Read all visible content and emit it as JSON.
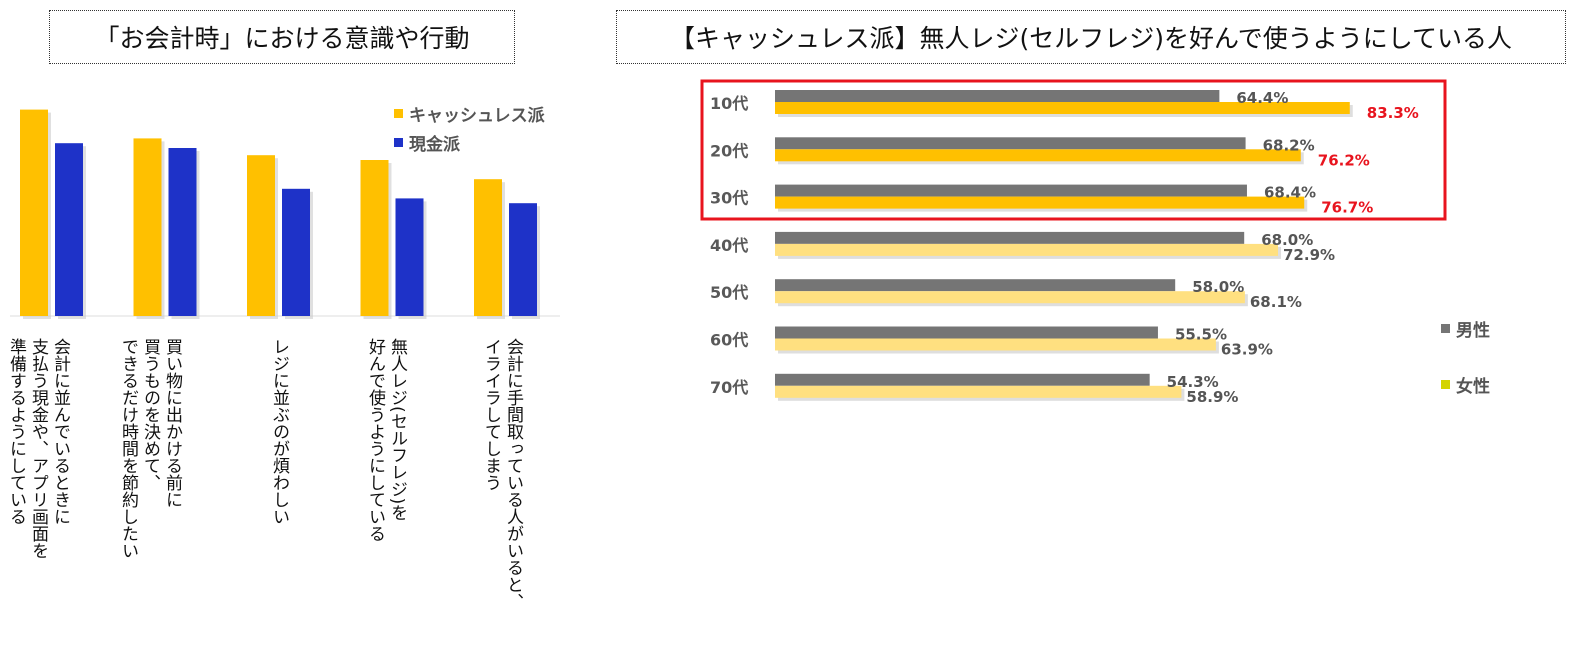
{
  "left_chart": {
    "title": "「お会計時」における意識や行動",
    "chart_data": {
      "type": "bar",
      "categories": [
        "会計に並んでいるときに\n支払う現金や、アプリ画面を\n準備するようにしている",
        "買い物に出かける前に\n買うものを決めて、\nできるだけ時間を節約したい",
        "レジに並ぶのが煩わしい",
        "無人レジ(セルフレジ)を\n好んで使うようにしている",
        "会計に手間取っている人がいると、\nイライラしてしまう"
      ],
      "series": [
        {
          "name": "キャッシュレス派",
          "values": [
            0.86,
            0.74,
            0.67,
            0.65,
            0.57
          ],
          "color": "#FFC000"
        },
        {
          "name": "現金派",
          "values": [
            0.72,
            0.7,
            0.53,
            0.49,
            0.47
          ],
          "color": "#1E32C8"
        }
      ],
      "legend_position": "top-right",
      "ylim": [
        0,
        1
      ]
    }
  },
  "right_chart": {
    "title": "【キャッシュレス派】無人レジ(セルフレジ)を好んで使うようにしている人",
    "chart_data": {
      "type": "bar",
      "orientation": "horizontal",
      "categories": [
        "10代",
        "20代",
        "30代",
        "40代",
        "50代",
        "60代",
        "70代"
      ],
      "series": [
        {
          "name": "男性",
          "values": [
            64.4,
            68.2,
            68.4,
            68.0,
            58.0,
            55.5,
            54.3
          ],
          "color": "#757575"
        },
        {
          "name": "女性",
          "values": [
            83.3,
            76.2,
            76.7,
            72.9,
            68.1,
            63.9,
            58.9
          ],
          "color": "#FFC000",
          "light_color": "#FFE080"
        }
      ],
      "value_labels": {
        "男性": [
          "64.4%",
          "68.2%",
          "68.4%",
          "68.0%",
          "58.0%",
          "55.5%",
          "54.3%"
        ],
        "女性": [
          "83.3%",
          "76.2%",
          "76.7%",
          "72.9%",
          "68.1%",
          "63.9%",
          "58.9%"
        ]
      },
      "highlighted_categories": [
        "10代",
        "20代",
        "30代"
      ],
      "highlight_color": "#E8141E",
      "label_color": "#555555",
      "legend_position": "right",
      "legend_colors": [
        "#757575",
        "#D4D400"
      ],
      "xlim": [
        0,
        100
      ]
    }
  }
}
